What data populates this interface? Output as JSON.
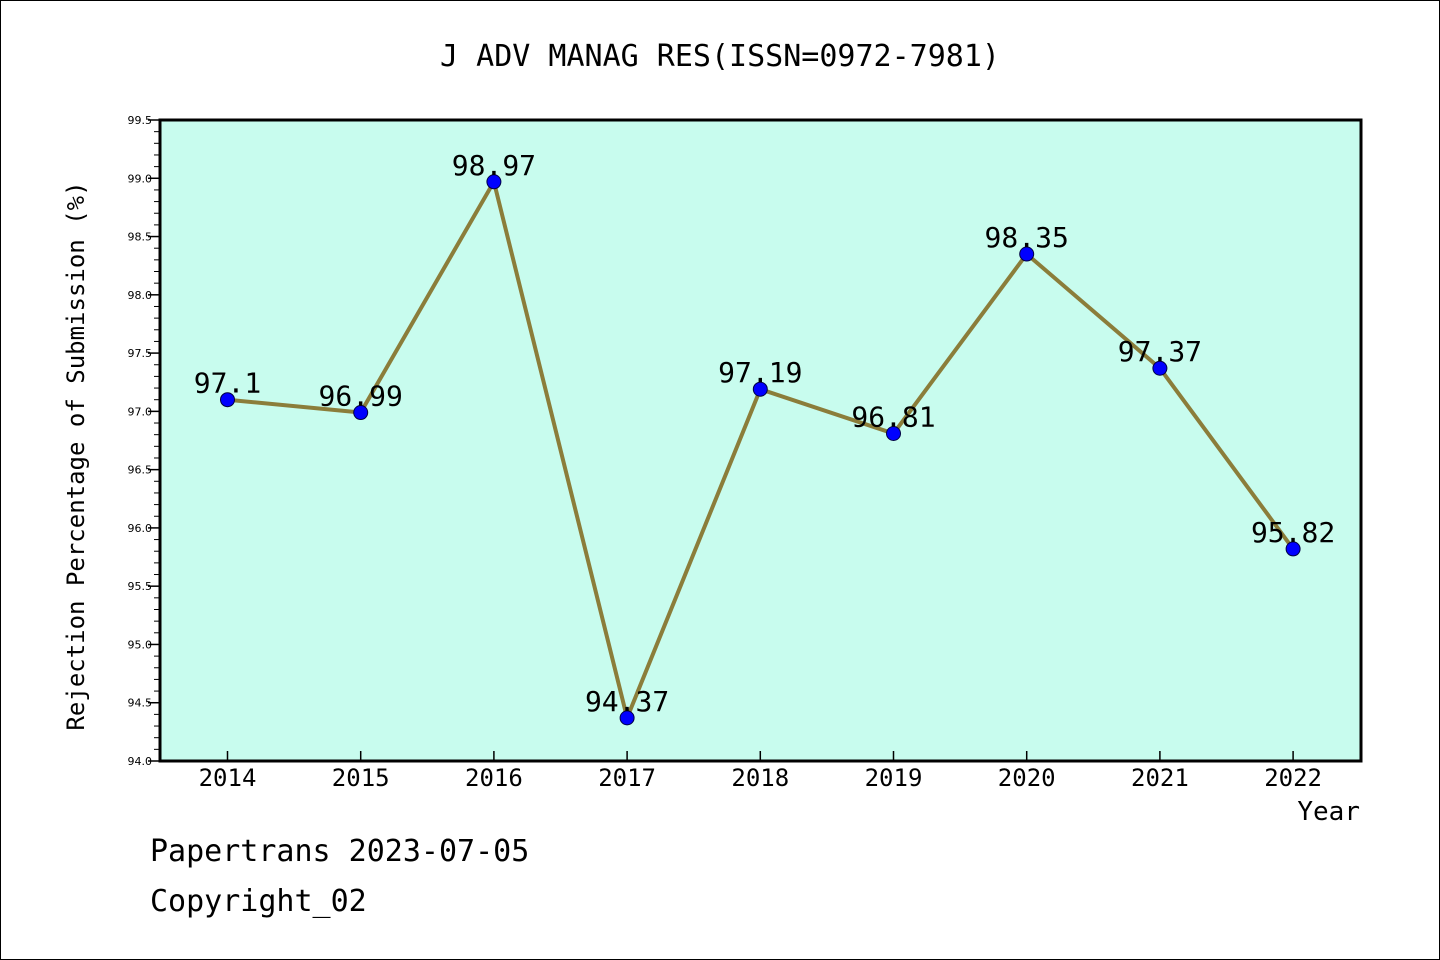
{
  "chart_data": {
    "type": "line",
    "title": "J ADV MANAG RES(ISSN=0972-7981)",
    "xlabel": "Year",
    "ylabel": "Rejection Percentage of Submission (%)",
    "categories": [
      "2014",
      "2015",
      "2016",
      "2017",
      "2018",
      "2019",
      "2020",
      "2021",
      "2022"
    ],
    "values": [
      97.1,
      96.99,
      98.97,
      94.37,
      97.19,
      96.81,
      98.35,
      97.37,
      95.82
    ],
    "data_labels": [
      "97.1",
      "96.99",
      "98.97",
      "94.37",
      "97.19",
      "96.81",
      "98.35",
      "97.37",
      "95.82"
    ],
    "ylim": [
      94.0,
      99.5
    ],
    "yticks": [
      "94.0",
      "94.5",
      "95.0",
      "95.5",
      "96.0",
      "96.5",
      "97.0",
      "97.5",
      "98.0",
      "98.5",
      "99.0",
      "99.5"
    ],
    "grid": false,
    "colors": {
      "plot_background": "#c8fcee",
      "line": "#8b7d3a",
      "marker": "#0000ff"
    }
  },
  "footer": {
    "line1": "Papertrans 2023-07-05",
    "line2": "Copyright_02"
  }
}
